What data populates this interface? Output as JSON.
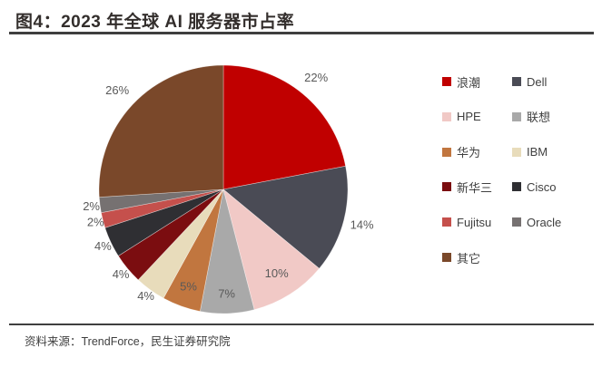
{
  "figure": {
    "title": "图4：2023 年全球 AI 服务器市占率",
    "source": "资料来源：TrendForce，民生证券研究院"
  },
  "colors": {
    "title_text": "#332E2C",
    "rule": "#3F3F3F",
    "percent_label": "#595959",
    "legend_text": "#404040",
    "background": "#FFFFFF"
  },
  "chart_data": {
    "type": "pie",
    "title": "2023 年全球 AI 服务器市占率",
    "start_angle_deg": 0,
    "direction": "clockwise",
    "legend_position": "right",
    "unit": "percent",
    "slices": [
      {
        "name": "浪潮",
        "value": 22,
        "label": "22%",
        "color": "#C00000",
        "label_r": 1.17
      },
      {
        "name": "Dell",
        "value": 14,
        "label": "14%",
        "color": "#4A4B55",
        "label_r": 1.15
      },
      {
        "name": "HPE",
        "value": 10,
        "label": "10%",
        "color": "#F1C9C6",
        "label_r": 0.8
      },
      {
        "name": "联想",
        "value": 7,
        "label": "7%",
        "color": "#A9A9A9",
        "label_r": 0.84
      },
      {
        "name": "华为",
        "value": 5,
        "label": "5%",
        "color": "#C1763F",
        "label_r": 0.83
      },
      {
        "name": "IBM",
        "value": 4,
        "label": "4%",
        "color": "#E8DCBB",
        "label_r": 1.06
      },
      {
        "name": "新华三",
        "value": 4,
        "label": "4%",
        "color": "#7B0D10",
        "label_r": 1.07
      },
      {
        "name": "Cisco",
        "value": 4,
        "label": "4%",
        "color": "#2F2F33",
        "label_r": 1.07
      },
      {
        "name": "Fujitsu",
        "value": 2,
        "label": "2%",
        "color": "#C5504C",
        "label_r": 1.06
      },
      {
        "name": "Oracle",
        "value": 2,
        "label": "2%",
        "color": "#767171",
        "label_r": 1.07
      },
      {
        "name": "其它",
        "value": 26,
        "label": "26%",
        "color": "#7A482A",
        "label_r": 1.17
      }
    ]
  }
}
